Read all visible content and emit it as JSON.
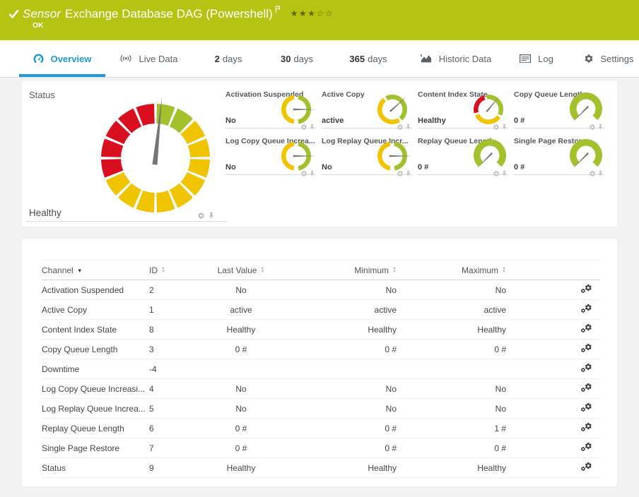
{
  "colors": {
    "header_bg": "#b5c313",
    "accent_blue": "#1a9bd7",
    "gauge_green": "#a3c12d",
    "gauge_yellow": "#f0c400",
    "gauge_red": "#d90e1e",
    "needle": "#757575"
  },
  "header": {
    "sensor_label": "Sensor",
    "title": "Exchange Database DAG (Powershell)",
    "status": "OK",
    "rating": {
      "filled": 3,
      "empty": 2
    }
  },
  "tabs": [
    {
      "icon": "gauge-icon",
      "strong": "",
      "label": "Overview",
      "active": true
    },
    {
      "icon": "broadcast-icon",
      "strong": "",
      "label": "Live Data",
      "active": false
    },
    {
      "icon": "",
      "strong": "2",
      "label": "days",
      "active": false
    },
    {
      "icon": "",
      "strong": "30",
      "label": "days",
      "active": false
    },
    {
      "icon": "",
      "strong": "365",
      "label": "days",
      "active": false
    },
    {
      "icon": "chart-icon",
      "strong": "",
      "label": "Historic Data",
      "active": false
    },
    {
      "icon": "log-icon",
      "strong": "",
      "label": "Log",
      "active": false
    },
    {
      "icon": "gear-icon",
      "strong": "",
      "label": "Settings",
      "active": false
    }
  ],
  "status_panel": {
    "label": "Status",
    "value": "Healthy",
    "gauge": {
      "size": 170,
      "outer": 77,
      "inner": 49,
      "gap": 3,
      "equal_colors": [
        "#a3c12d",
        "#a3c12d",
        "#f0c400",
        "#f0c400",
        "#f0c400",
        "#f0c400",
        "#f0c400",
        "#f0c400",
        "#f0c400",
        "#f0c400",
        "#f0c400",
        "#d90e1e",
        "#d90e1e",
        "#d90e1e",
        "#d90e1e",
        "#d90e1e"
      ],
      "needle": {
        "angle": 6,
        "len": 1.14,
        "half_width": 3.6,
        "tail": 0.12
      }
    }
  },
  "gauge_presets": {
    "yesno": {
      "size": 44,
      "outer": 21,
      "inner": 14.5,
      "segments": [
        {
          "from": 10,
          "to": 170,
          "color": "#a3c12d"
        },
        {
          "from": 190,
          "to": 350,
          "color": "#f0c400"
        }
      ],
      "needle": {
        "angle": 90,
        "len": 1.32,
        "half_width": 1.2,
        "tail": 0.2
      }
    },
    "active": {
      "size": 44,
      "outer": 21,
      "inner": 14.5,
      "segments": [
        {
          "from": 332,
          "to": 138,
          "color": "#a3c12d"
        },
        {
          "from": 148,
          "to": 322,
          "color": "#f0c400"
        }
      ],
      "needle": {
        "angle": 48,
        "len": 1.3,
        "half_width": 1.2,
        "tail": 0.2
      }
    },
    "index": {
      "size": 44,
      "outer": 21,
      "inner": 14.5,
      "segments": [
        {
          "from": 352,
          "to": 115,
          "color": "#a3c12d"
        },
        {
          "from": 125,
          "to": 245,
          "color": "#f0c400"
        },
        {
          "from": 255,
          "to": 342,
          "color": "#d90e1e"
        }
      ],
      "needle": {
        "angle": 40,
        "len": 1.2,
        "half_width": 1.2,
        "tail": 0.2
      }
    },
    "numeric": {
      "size": 48,
      "outer": 23,
      "inner": 13.5,
      "segments": [
        {
          "from": 225,
          "to": 135,
          "color": "#a3c12d"
        }
      ],
      "needle": {
        "angle": 225,
        "len": 1.18,
        "half_width": 1.2,
        "tail": 0.2
      }
    }
  },
  "mini_gauges": [
    {
      "label": "Activation Suspended",
      "value": "No",
      "gauge": "yesno"
    },
    {
      "label": "Active Copy",
      "value": "active",
      "gauge": "active"
    },
    {
      "label": "Content Index State",
      "value": "Healthy",
      "gauge": "index"
    },
    {
      "label": "Copy Queue Length",
      "value": "0 #",
      "gauge": "numeric"
    },
    {
      "label": "Log Copy Queue Increa...",
      "value": "No",
      "gauge": "yesno"
    },
    {
      "label": "Log Replay Queue Incr...",
      "value": "No",
      "gauge": "yesno"
    },
    {
      "label": "Replay Queue Length",
      "value": "0 #",
      "gauge": "numeric"
    },
    {
      "label": "Single Page Restore",
      "value": "0 #",
      "gauge": "numeric"
    }
  ],
  "table": {
    "columns": [
      {
        "label": "Channel",
        "sort": "active"
      },
      {
        "label": "ID",
        "sort": "both"
      },
      {
        "label": "Last Value",
        "sort": "both"
      },
      {
        "label": "Minimum",
        "sort": "both"
      },
      {
        "label": "Maximum",
        "sort": "both"
      }
    ],
    "rows": [
      {
        "channel": "Activation Suspended",
        "id": "2",
        "last": "No",
        "min": "No",
        "max": "No"
      },
      {
        "channel": "Active Copy",
        "id": "1",
        "last": "active",
        "min": "active",
        "max": "active"
      },
      {
        "channel": "Content Index State",
        "id": "8",
        "last": "Healthy",
        "min": "Healthy",
        "max": "Healthy"
      },
      {
        "channel": "Copy Queue Length",
        "id": "3",
        "last": "0 #",
        "min": "0 #",
        "max": "0 #"
      },
      {
        "channel": "Downtime",
        "id": "-4",
        "last": "",
        "min": "",
        "max": ""
      },
      {
        "channel": "Log Copy Queue Increasi...",
        "id": "4",
        "last": "No",
        "min": "No",
        "max": "No"
      },
      {
        "channel": "Log Replay Queue Increa...",
        "id": "5",
        "last": "No",
        "min": "No",
        "max": "No"
      },
      {
        "channel": "Replay Queue Length",
        "id": "6",
        "last": "0 #",
        "min": "0 #",
        "max": "1 #"
      },
      {
        "channel": "Single Page Restore",
        "id": "7",
        "last": "0 #",
        "min": "0 #",
        "max": "0 #"
      },
      {
        "channel": "Status",
        "id": "9",
        "last": "Healthy",
        "min": "Healthy",
        "max": "Healthy"
      }
    ]
  }
}
